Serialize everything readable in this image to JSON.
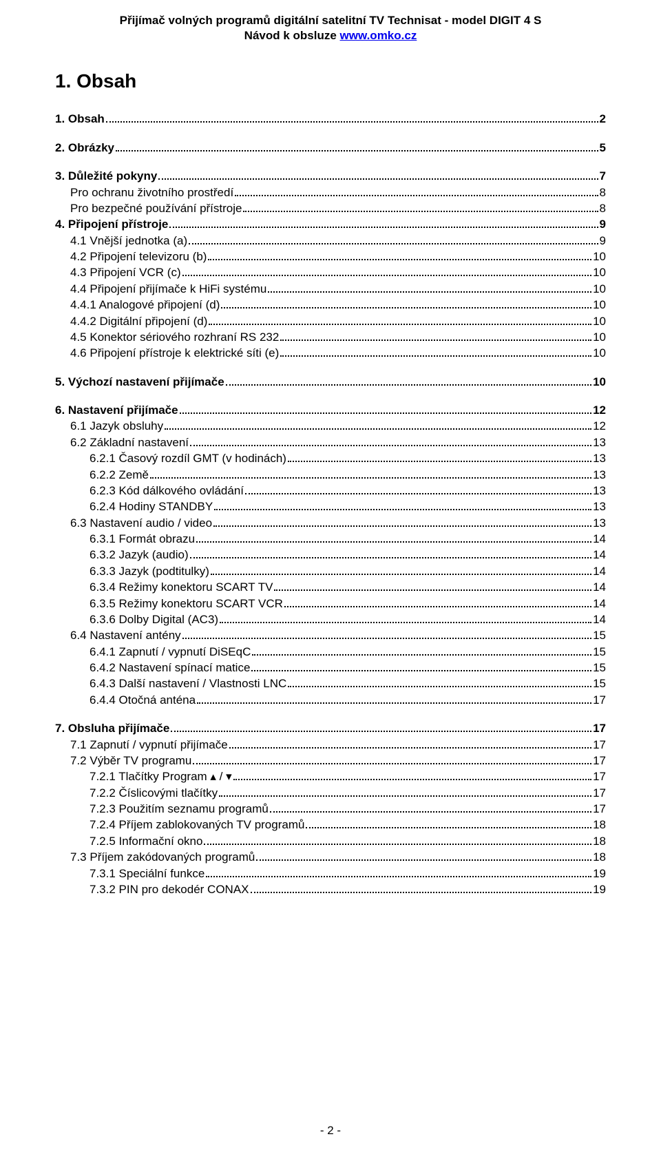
{
  "header": {
    "line1": "Přijímač volných programů digitální satelitní TV Technisat - model DIGIT 4 S",
    "line2_prefix": "Návod k obsluze ",
    "line2_link": "www.omko.cz"
  },
  "title": "1.  Obsah",
  "footer": "- 2 -",
  "toc": [
    {
      "level": 1,
      "bold": true,
      "gap": false,
      "label": "1.  Obsah",
      "page": "2"
    },
    {
      "level": 1,
      "bold": true,
      "gap": true,
      "label": "2.  Obrázky",
      "page": "5"
    },
    {
      "level": 1,
      "bold": true,
      "gap": true,
      "label": "3.  Důležité pokyny",
      "page": "7"
    },
    {
      "level": 2,
      "bold": false,
      "gap": false,
      "label": "Pro ochranu životního prostředí",
      "page": "8"
    },
    {
      "level": 2,
      "bold": false,
      "gap": false,
      "label": "Pro bezpečné používání přístroje",
      "page": "8"
    },
    {
      "level": 1,
      "bold": true,
      "gap": false,
      "label": "4.  Připojení přístroje",
      "page": "9"
    },
    {
      "level": 2,
      "bold": false,
      "gap": false,
      "label": "4.1 Vnější jednotka (a)",
      "page": "9"
    },
    {
      "level": 2,
      "bold": false,
      "gap": false,
      "label": "4.2 Připojení televizoru (b)",
      "page": "10"
    },
    {
      "level": 2,
      "bold": false,
      "gap": false,
      "label": "4.3 Připojení VCR (c)",
      "page": "10"
    },
    {
      "level": 2,
      "bold": false,
      "gap": false,
      "label": "4.4 Připojení přijímače k HiFi systému",
      "page": "10"
    },
    {
      "level": 2,
      "bold": false,
      "gap": false,
      "label": "4.4.1 Analogové připojení (d)",
      "page": "10"
    },
    {
      "level": 2,
      "bold": false,
      "gap": false,
      "label": "4.4.2 Digitální připojení (d)",
      "page": "10"
    },
    {
      "level": 2,
      "bold": false,
      "gap": false,
      "label": "4.5 Konektor sériového rozhraní RS 232",
      "page": "10"
    },
    {
      "level": 2,
      "bold": false,
      "gap": false,
      "label": "4.6 Připojení přístroje k elektrické síti (e)",
      "page": "10"
    },
    {
      "level": 1,
      "bold": true,
      "gap": true,
      "label": "5.  Výchozí nastavení přijímače",
      "page": "10"
    },
    {
      "level": 1,
      "bold": true,
      "gap": true,
      "label": "6.  Nastavení přijímače",
      "page": "12"
    },
    {
      "level": 2,
      "bold": false,
      "gap": false,
      "label": "6.1  Jazyk obsluhy",
      "page": "12"
    },
    {
      "level": 2,
      "bold": false,
      "gap": false,
      "label": "6.2  Základní nastavení",
      "page": "13"
    },
    {
      "level": 3,
      "bold": false,
      "gap": false,
      "label": "6.2.1  Časový rozdíl GMT (v hodinách)",
      "page": "13"
    },
    {
      "level": 3,
      "bold": false,
      "gap": false,
      "label": "6.2.2  Země",
      "page": "13"
    },
    {
      "level": 3,
      "bold": false,
      "gap": false,
      "label": "6.2.3  Kód dálkového ovládání",
      "page": "13"
    },
    {
      "level": 3,
      "bold": false,
      "gap": false,
      "label": "6.2.4  Hodiny STANDBY",
      "page": "13"
    },
    {
      "level": 2,
      "bold": false,
      "gap": false,
      "label": "6.3  Nastavení audio / video",
      "page": "13"
    },
    {
      "level": 3,
      "bold": false,
      "gap": false,
      "label": "6.3.1  Formát obrazu",
      "page": "14"
    },
    {
      "level": 3,
      "bold": false,
      "gap": false,
      "label": "6.3.2 Jazyk (audio)",
      "page": "14"
    },
    {
      "level": 3,
      "bold": false,
      "gap": false,
      "label": "6.3.3 Jazyk (podtitulky)",
      "page": "14"
    },
    {
      "level": 3,
      "bold": false,
      "gap": false,
      "label": "6.3.4  Režimy konektoru SCART TV",
      "page": "14"
    },
    {
      "level": 3,
      "bold": false,
      "gap": false,
      "label": "6.3.5  Režimy konektoru SCART VCR",
      "page": "14"
    },
    {
      "level": 3,
      "bold": false,
      "gap": false,
      "label": "6.3.6  Dolby Digital (AC3)",
      "page": "14"
    },
    {
      "level": 2,
      "bold": false,
      "gap": false,
      "label": "6.4  Nastavení antény",
      "page": "15"
    },
    {
      "level": 3,
      "bold": false,
      "gap": false,
      "label": "6.4.1  Zapnutí / vypnutí DiSEqC",
      "page": "15"
    },
    {
      "level": 3,
      "bold": false,
      "gap": false,
      "label": "6.4.2  Nastavení spínací matice",
      "page": "15"
    },
    {
      "level": 3,
      "bold": false,
      "gap": false,
      "label": "6.4.3 Další nastavení / Vlastnosti LNC",
      "page": "15"
    },
    {
      "level": 3,
      "bold": false,
      "gap": false,
      "label": "6.4.4 Otočná anténa",
      "page": "17"
    },
    {
      "level": 1,
      "bold": true,
      "gap": true,
      "label": "7.  Obsluha přijímače",
      "page": "17"
    },
    {
      "level": 2,
      "bold": false,
      "gap": false,
      "label": "7.1  Zapnutí / vypnutí přijímače",
      "page": "17"
    },
    {
      "level": 2,
      "bold": false,
      "gap": false,
      "label": "7.2  Výběr TV programu",
      "page": "17"
    },
    {
      "level": 3,
      "bold": false,
      "gap": false,
      "label": "7.2.1  Tlačítky Program ▴ / ▾",
      "page": "17"
    },
    {
      "level": 3,
      "bold": false,
      "gap": false,
      "label": "7.2.2  Číslicovými tlačítky",
      "page": "17"
    },
    {
      "level": 3,
      "bold": false,
      "gap": false,
      "label": "7.2.3  Použitím seznamu programů",
      "page": "17"
    },
    {
      "level": 3,
      "bold": false,
      "gap": false,
      "label": "7.2.4  Příjem zablokovaných TV programů",
      "page": "18"
    },
    {
      "level": 3,
      "bold": false,
      "gap": false,
      "label": "7.2.5  Informační okno",
      "page": "18"
    },
    {
      "level": 2,
      "bold": false,
      "gap": false,
      "label": "7.3  Příjem zakódovaných programů",
      "page": "18"
    },
    {
      "level": 3,
      "bold": false,
      "gap": false,
      "label": "7.3.1  Speciální funkce",
      "page": "19"
    },
    {
      "level": 3,
      "bold": false,
      "gap": false,
      "label": "7.3.2  PIN pro dekodér CONAX",
      "page": "19"
    }
  ]
}
